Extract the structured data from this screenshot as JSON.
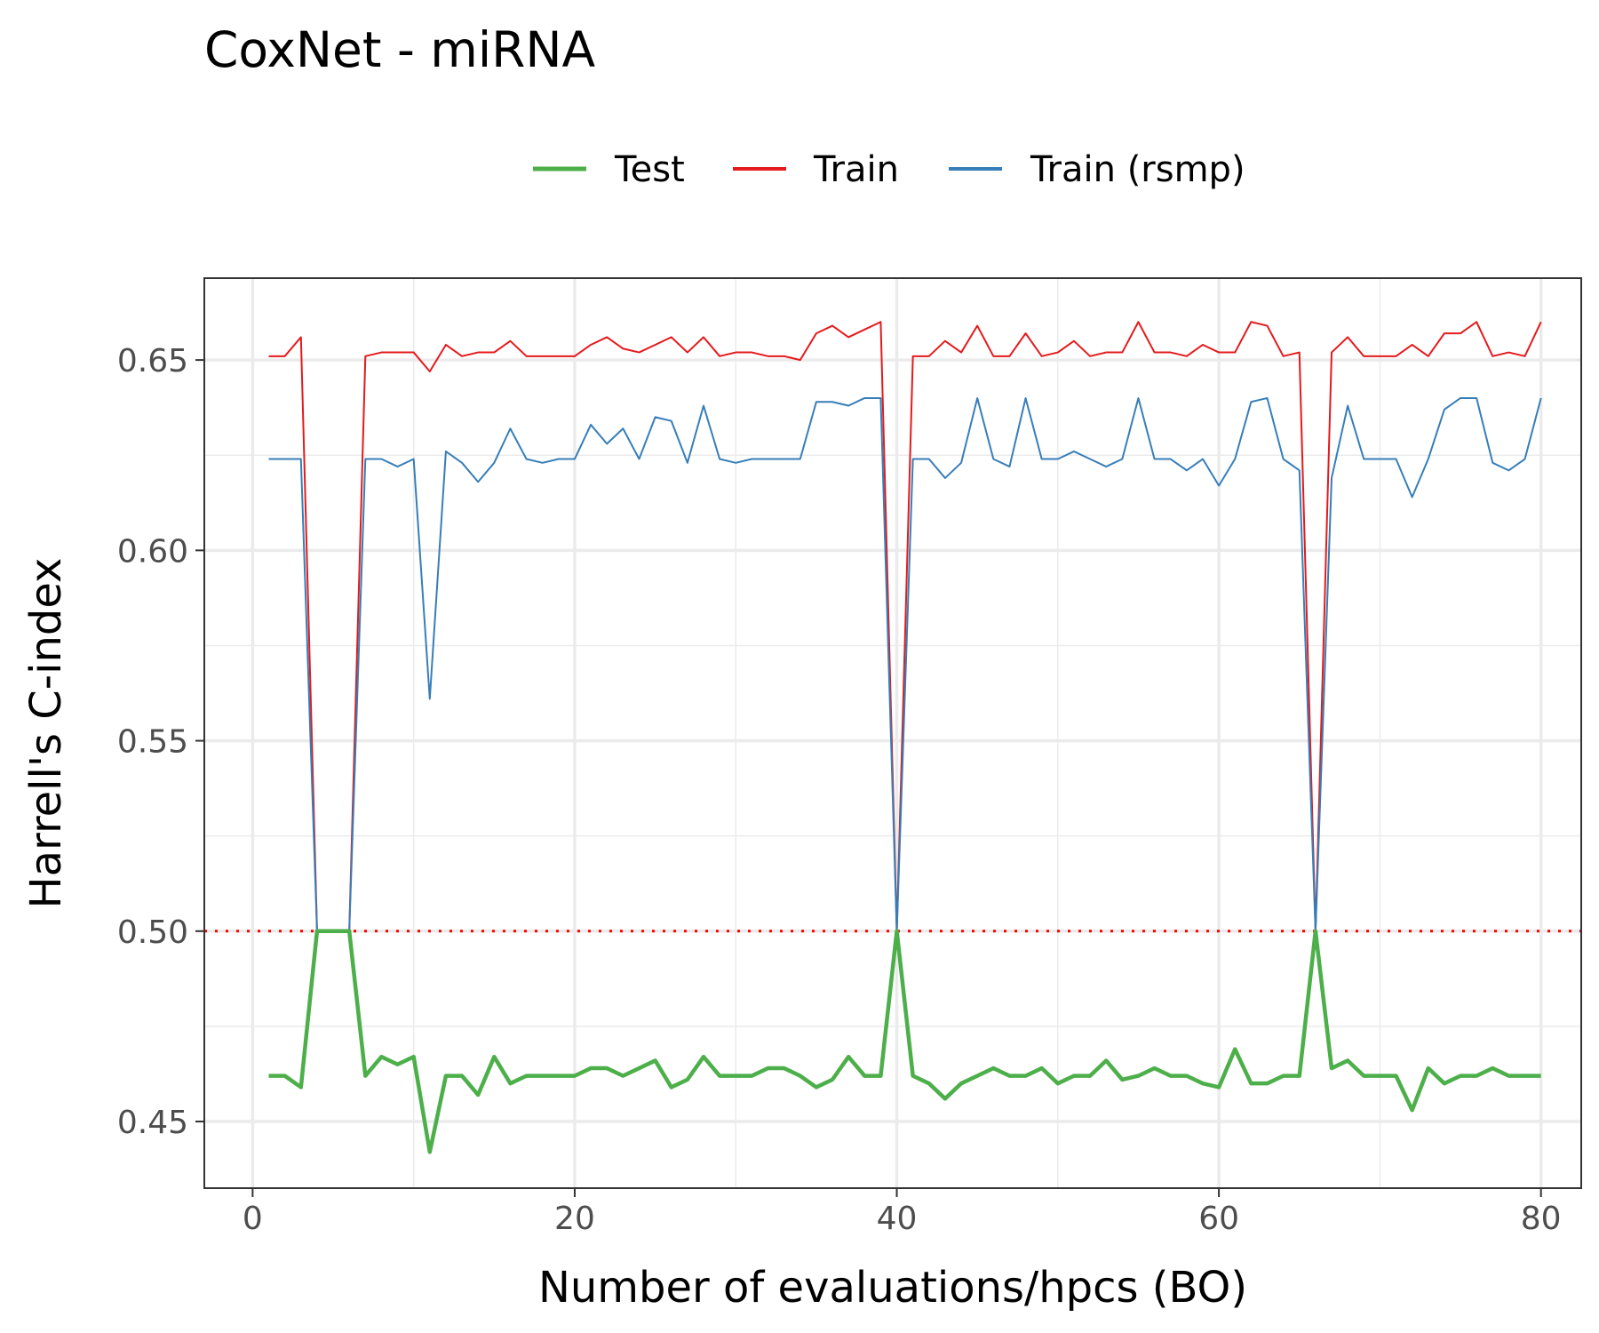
{
  "chart_data": {
    "type": "line",
    "title": "CoxNet - miRNA",
    "xlabel": "Number of evaluations/hpcs (BO)",
    "ylabel": "Harrell's C-index",
    "xlim": [
      -3,
      82.5
    ],
    "ylim": [
      0.4325,
      0.6715
    ],
    "xticks": [
      0,
      20,
      40,
      60,
      80
    ],
    "yticks": [
      0.45,
      0.5,
      0.55,
      0.6,
      0.65
    ],
    "xtick_labels": [
      "0",
      "20",
      "40",
      "60",
      "80"
    ],
    "ytick_labels": [
      "0.45",
      "0.50",
      "0.55",
      "0.60",
      "0.65"
    ],
    "grid": true,
    "legend_position": "top",
    "reference_line": {
      "y": 0.5,
      "style": "dotted",
      "color": "#ff0000"
    },
    "x": [
      1,
      2,
      3,
      4,
      5,
      6,
      7,
      8,
      9,
      10,
      11,
      12,
      13,
      14,
      15,
      16,
      17,
      18,
      19,
      20,
      21,
      22,
      23,
      24,
      25,
      26,
      27,
      28,
      29,
      30,
      31,
      32,
      33,
      34,
      35,
      36,
      37,
      38,
      39,
      40,
      41,
      42,
      43,
      44,
      45,
      46,
      47,
      48,
      49,
      50,
      51,
      52,
      53,
      54,
      55,
      56,
      57,
      58,
      59,
      60,
      61,
      62,
      63,
      64,
      65,
      66,
      67,
      68,
      69,
      70,
      71,
      72,
      73,
      74,
      75,
      76,
      77,
      78,
      79,
      80
    ],
    "series": [
      {
        "name": "Test",
        "color": "#4daf4a",
        "values": [
          0.462,
          0.462,
          0.459,
          0.5,
          0.5,
          0.5,
          0.462,
          0.467,
          0.465,
          0.467,
          0.442,
          0.462,
          0.462,
          0.457,
          0.467,
          0.46,
          0.462,
          0.462,
          0.462,
          0.462,
          0.464,
          0.464,
          0.462,
          0.464,
          0.466,
          0.459,
          0.461,
          0.467,
          0.462,
          0.462,
          0.462,
          0.464,
          0.464,
          0.462,
          0.459,
          0.461,
          0.467,
          0.462,
          0.462,
          0.5,
          0.462,
          0.46,
          0.456,
          0.46,
          0.462,
          0.464,
          0.462,
          0.462,
          0.464,
          0.46,
          0.462,
          0.462,
          0.466,
          0.461,
          0.462,
          0.464,
          0.462,
          0.462,
          0.46,
          0.459,
          0.469,
          0.46,
          0.46,
          0.462,
          0.462,
          0.5,
          0.464,
          0.466,
          0.462,
          0.462,
          0.462,
          0.453,
          0.464,
          0.46,
          0.462,
          0.462,
          0.464,
          0.462,
          0.462,
          0.462
        ]
      },
      {
        "name": "Train",
        "color": "#e41a1c",
        "values": [
          0.651,
          0.651,
          0.656,
          0.5,
          0.5,
          0.5,
          0.651,
          0.652,
          0.652,
          0.652,
          0.647,
          0.654,
          0.651,
          0.652,
          0.652,
          0.655,
          0.651,
          0.651,
          0.651,
          0.651,
          0.654,
          0.656,
          0.653,
          0.652,
          0.654,
          0.656,
          0.652,
          0.656,
          0.651,
          0.652,
          0.652,
          0.651,
          0.651,
          0.65,
          0.657,
          0.659,
          0.656,
          0.658,
          0.66,
          0.5,
          0.651,
          0.651,
          0.655,
          0.652,
          0.659,
          0.651,
          0.651,
          0.657,
          0.651,
          0.652,
          0.655,
          0.651,
          0.652,
          0.652,
          0.66,
          0.652,
          0.652,
          0.651,
          0.654,
          0.652,
          0.652,
          0.66,
          0.659,
          0.651,
          0.652,
          0.5,
          0.652,
          0.656,
          0.651,
          0.651,
          0.651,
          0.654,
          0.651,
          0.657,
          0.657,
          0.66,
          0.651,
          0.652,
          0.651,
          0.66
        ]
      },
      {
        "name": "Train (rsmp)",
        "color": "#377eb8",
        "values": [
          0.624,
          0.624,
          0.624,
          0.5,
          0.5,
          0.5,
          0.624,
          0.624,
          0.622,
          0.624,
          0.561,
          0.626,
          0.623,
          0.618,
          0.623,
          0.632,
          0.624,
          0.623,
          0.624,
          0.624,
          0.633,
          0.628,
          0.632,
          0.624,
          0.635,
          0.634,
          0.623,
          0.638,
          0.624,
          0.623,
          0.624,
          0.624,
          0.624,
          0.624,
          0.639,
          0.639,
          0.638,
          0.64,
          0.64,
          0.5,
          0.624,
          0.624,
          0.619,
          0.623,
          0.64,
          0.624,
          0.622,
          0.64,
          0.624,
          0.624,
          0.626,
          0.624,
          0.622,
          0.624,
          0.64,
          0.624,
          0.624,
          0.621,
          0.624,
          0.617,
          0.624,
          0.639,
          0.64,
          0.624,
          0.621,
          0.5,
          0.619,
          0.638,
          0.624,
          0.624,
          0.624,
          0.614,
          0.624,
          0.637,
          0.64,
          0.64,
          0.623,
          0.621,
          0.624,
          0.64
        ]
      }
    ]
  }
}
